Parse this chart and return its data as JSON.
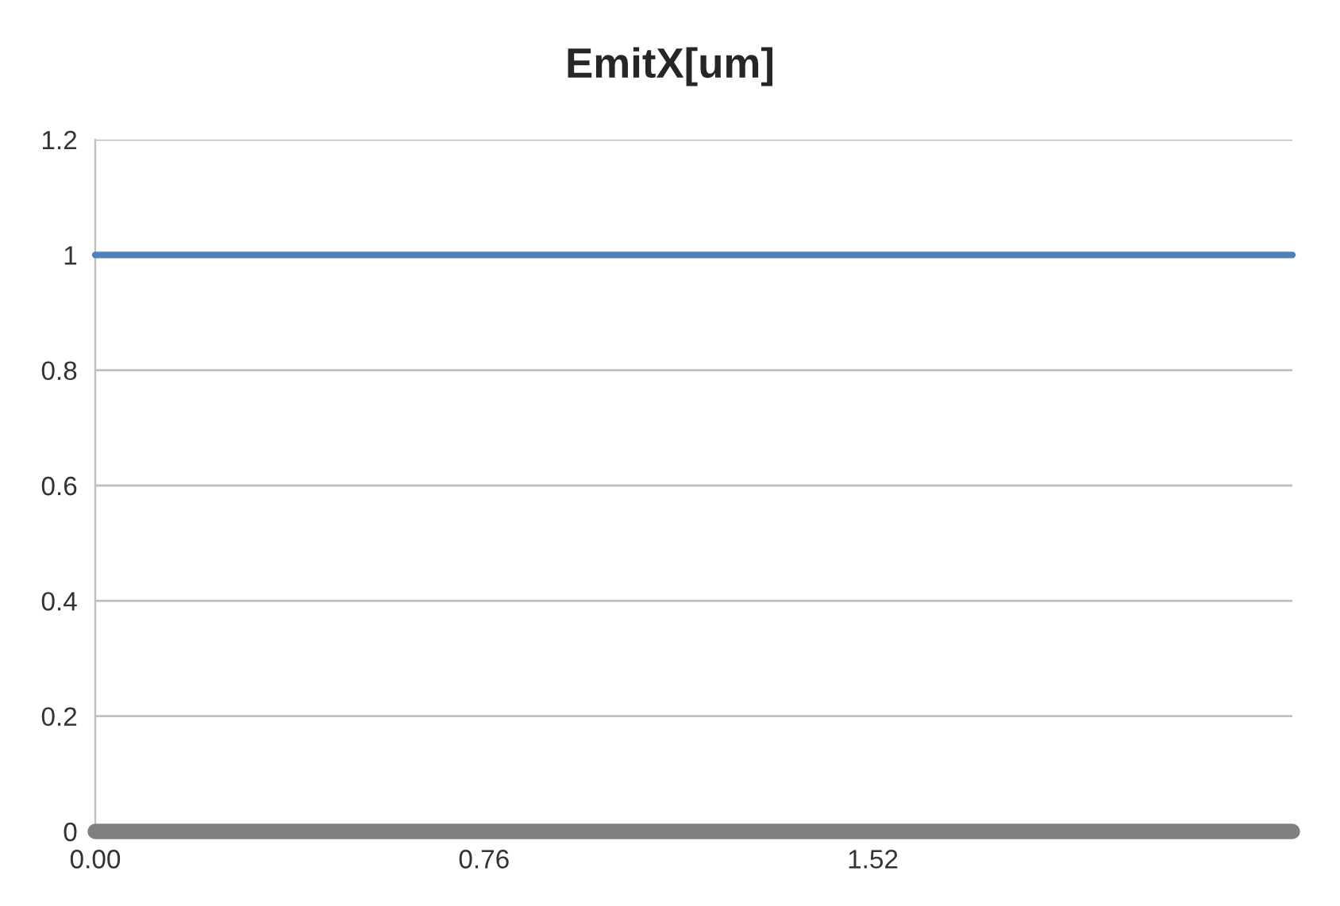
{
  "chart_data": {
    "type": "line",
    "title": "EmitX[um]",
    "x": [
      0,
      2.34
    ],
    "series": [
      {
        "color": "#4f81bd",
        "values": [
          1,
          1
        ]
      },
      {
        "color": "#808080",
        "values": [
          0,
          0
        ]
      }
    ],
    "xlim": [
      0,
      2.34
    ],
    "xticks": [
      {
        "value": 0,
        "label": "0.00"
      },
      {
        "value": 0.76,
        "label": "0.76"
      },
      {
        "value": 1.52,
        "label": "1.52"
      }
    ],
    "ylim": [
      0,
      1.2
    ],
    "yticks": [
      {
        "value": 0,
        "label": "0"
      },
      {
        "value": 0.2,
        "label": "0.2"
      },
      {
        "value": 0.4,
        "label": "0.4"
      },
      {
        "value": 0.6,
        "label": "0.6"
      },
      {
        "value": 0.8,
        "label": "0.8"
      },
      {
        "value": 1,
        "label": "1"
      },
      {
        "value": 1.2,
        "label": "1.2"
      }
    ],
    "grid": "y",
    "legend": false,
    "marker": "none",
    "line_style": "solid"
  }
}
